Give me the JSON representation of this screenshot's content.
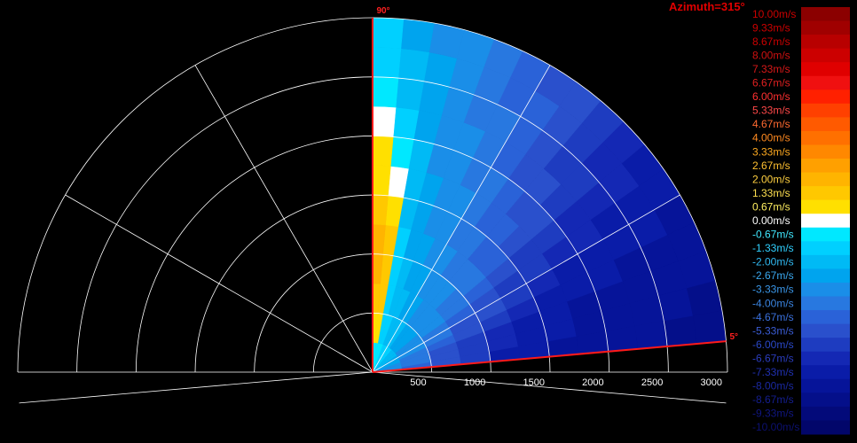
{
  "chart_data": {
    "type": "heatmap",
    "title": "Azimuth=315°",
    "sector_labels": [
      "90°",
      "5°"
    ],
    "sector_min_deg": 5,
    "sector_max_deg": 90,
    "range_ticks": [
      500,
      1000,
      1500,
      2000,
      2500,
      3000
    ],
    "range_max": 3000,
    "colorbar": {
      "labels": [
        "10.00m/s",
        "9.33m/s",
        "8.67m/s",
        "8.00m/s",
        "7.33m/s",
        "6.67m/s",
        "6.00m/s",
        "5.33m/s",
        "4.67m/s",
        "4.00m/s",
        "3.33m/s",
        "2.67m/s",
        "2.00m/s",
        "1.33m/s",
        "0.67m/s",
        "0.00m/s",
        "-0.67m/s",
        "-1.33m/s",
        "-2.00m/s",
        "-2.67m/s",
        "-3.33m/s",
        "-4.00m/s",
        "-4.67m/s",
        "-5.33m/s",
        "-6.00m/s",
        "-6.67m/s",
        "-7.33m/s",
        "-8.00m/s",
        "-8.67m/s",
        "-9.33m/s",
        "-10.00m/s"
      ],
      "colors": [
        "#8b0000",
        "#a00000",
        "#b80000",
        "#cc0000",
        "#e00000",
        "#f01010",
        "#ff2000",
        "#ff4000",
        "#ff5a00",
        "#ff7000",
        "#ff8800",
        "#ffa000",
        "#ffb400",
        "#ffc800",
        "#ffe000",
        "#ffffff",
        "#00e8ff",
        "#00d0ff",
        "#00baf5",
        "#00a4ee",
        "#1a8ee8",
        "#2878e0",
        "#2a62d8",
        "#2a50cc",
        "#1e3cc0",
        "#1428b4",
        "#0a1ca8",
        "#061499",
        "#040f8a",
        "#030a7a",
        "#02066a"
      ],
      "label_colors": [
        "#cc0000",
        "#cc0000",
        "#cc0000",
        "#d01010",
        "#d81818",
        "#e02020",
        "#ff3030",
        "#ff4848",
        "#ff6a30",
        "#ff8a20",
        "#ffaa20",
        "#ffc030",
        "#ffd040",
        "#ffe050",
        "#ffee60",
        "#ffffff",
        "#40e8ff",
        "#30d0ff",
        "#30b8f0",
        "#3aa8ee",
        "#3a96e8",
        "#3a84e0",
        "#3a70dc",
        "#3a5cd4",
        "#2a48c8",
        "#2a3cbc",
        "#2030b0",
        "#1a28a0",
        "#141e90",
        "#101680",
        "#0c1070"
      ]
    },
    "velocity_field": {
      "azimuth_bins_deg": [
        5,
        10,
        15,
        20,
        25,
        30,
        35,
        40,
        45,
        50,
        55,
        60,
        65,
        70,
        75,
        80,
        85,
        90
      ],
      "range_bins_m": [
        0,
        250,
        500,
        750,
        1000,
        1250,
        1500,
        1750,
        2000,
        2250,
        2500,
        2750,
        3000
      ],
      "velocity_ms": [
        [
          -3.5,
          -4.5,
          -5.5,
          -6.3,
          -7.0,
          -7.5,
          -7.8,
          -8.0,
          -8.2,
          -8.3,
          -8.4,
          -8.5
        ],
        [
          -3.3,
          -4.3,
          -5.3,
          -6.0,
          -6.7,
          -7.3,
          -7.6,
          -7.9,
          -8.0,
          -8.2,
          -8.3,
          -8.4
        ],
        [
          -3.0,
          -4.0,
          -5.0,
          -5.8,
          -6.4,
          -7.0,
          -7.4,
          -7.7,
          -7.9,
          -8.0,
          -8.1,
          -8.2
        ],
        [
          -2.8,
          -3.7,
          -4.6,
          -5.4,
          -6.0,
          -6.6,
          -7.1,
          -7.4,
          -7.6,
          -7.8,
          -7.9,
          -8.0
        ],
        [
          -2.6,
          -3.4,
          -4.2,
          -5.0,
          -5.6,
          -6.2,
          -6.7,
          -7.0,
          -7.3,
          -7.5,
          -7.6,
          -7.7
        ],
        [
          -2.4,
          -3.2,
          -3.9,
          -4.6,
          -5.2,
          -5.7,
          -6.2,
          -6.6,
          -6.9,
          -7.1,
          -7.3,
          -7.4
        ],
        [
          -2.2,
          -3.0,
          -3.6,
          -4.2,
          -4.7,
          -5.2,
          -5.7,
          -6.1,
          -6.4,
          -6.7,
          -6.9,
          -7.0
        ],
        [
          -2.0,
          -2.8,
          -3.4,
          -3.9,
          -4.3,
          -4.8,
          -5.2,
          -5.6,
          -5.9,
          -6.2,
          -6.4,
          -6.6
        ],
        [
          -1.8,
          -2.6,
          -3.2,
          -3.6,
          -4.0,
          -4.4,
          -4.8,
          -5.1,
          -5.4,
          -5.7,
          -5.9,
          -6.1
        ],
        [
          -1.6,
          -2.4,
          -3.0,
          -3.4,
          -3.7,
          -4.0,
          -4.4,
          -4.7,
          -5.0,
          -5.2,
          -5.4,
          -5.6
        ],
        [
          -1.4,
          -2.2,
          -2.8,
          -3.1,
          -3.4,
          -3.7,
          -4.0,
          -4.3,
          -4.5,
          -4.7,
          -4.9,
          -5.1
        ],
        [
          -1.2,
          -2.0,
          -2.5,
          -2.8,
          -3.1,
          -3.4,
          -3.6,
          -3.9,
          -4.1,
          -4.3,
          -4.5,
          -4.6
        ],
        [
          -1.0,
          -1.8,
          -2.2,
          -2.5,
          -2.8,
          -3.0,
          -3.2,
          -3.4,
          -3.6,
          -3.8,
          -4.0,
          -4.1
        ],
        [
          -0.8,
          -1.5,
          -1.9,
          -2.2,
          -2.4,
          -2.6,
          -2.8,
          -3.0,
          -3.2,
          -3.3,
          -3.5,
          -3.6
        ],
        [
          -0.6,
          -1.0,
          -1.3,
          -1.4,
          -1.6,
          -1.8,
          -2.0,
          -2.2,
          -2.4,
          -2.6,
          -2.8,
          -3.0
        ],
        [
          -0.6,
          0.5,
          1.2,
          1.5,
          1.2,
          0.6,
          0.0,
          -0.6,
          -1.2,
          -1.8,
          -2.2,
          -2.4
        ],
        [
          -0.6,
          0.8,
          1.6,
          2.0,
          2.0,
          1.6,
          1.0,
          0.4,
          0.0,
          -0.6,
          -1.0,
          -1.3
        ]
      ]
    }
  }
}
